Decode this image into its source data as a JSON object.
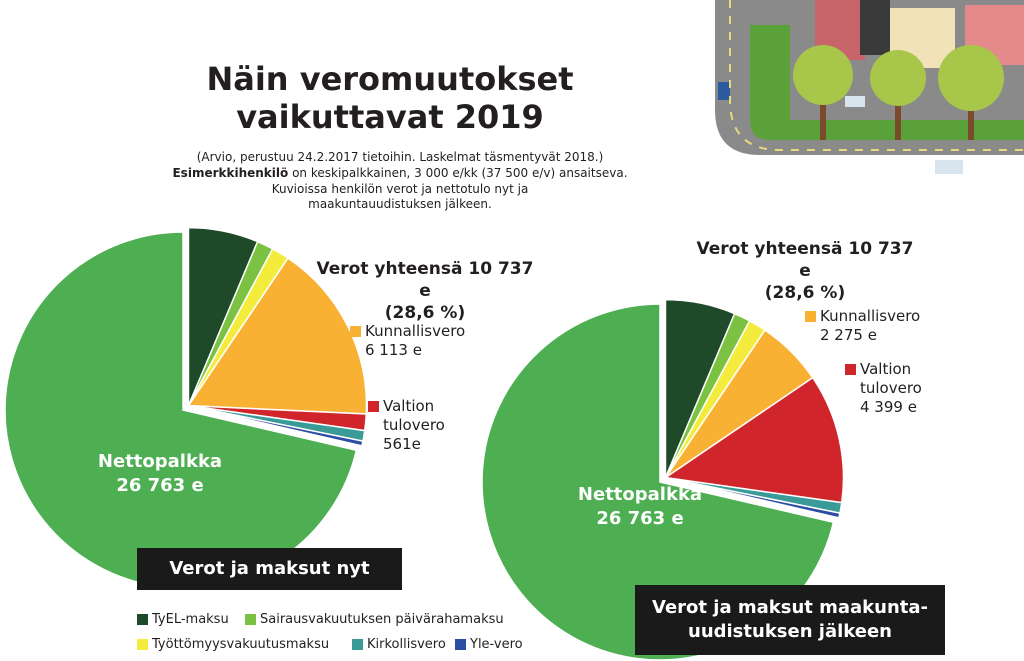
{
  "title": "Näin veromuutokset vaikuttavat 2019",
  "notes": [
    "(Arvio, perustuu 24.2.2017 tietoihin. Laskelmat täsmentyvät 2018.)",
    "Esimerkkihenkilö",
    "on keskipalkkainen, 3 000 e/kk (37 500 e/v) ansaitseva.",
    "Kuvioissa henkilön verot ja nettotulo nyt ja maakuntauudistuksen jälkeen."
  ],
  "chart_data": [
    {
      "type": "pie",
      "title": "Verot ja maksut nyt",
      "annotation": [
        "Verot yhteensä 10 737 e",
        "(28,6 %)"
      ],
      "categories": [
        "TyEL-maksu",
        "Sairausvakuutuksen päivärahamaksu",
        "Työttömyysvakuutusmaksu",
        "Kunnallisvero",
        "Valtion tulovero",
        "Kirkollisvero",
        "Yle-vero",
        "Nettopalkka"
      ],
      "values": [
        2381,
        560,
        600,
        6113,
        561,
        359,
        163,
        26763
      ],
      "value_labels": [
        null,
        null,
        null,
        "6 113 e",
        "561e",
        null,
        null,
        "26 763 e"
      ],
      "colors": [
        "#1e4a2a",
        "#7cc242",
        "#f3ec3c",
        "#f8b133",
        "#d0262b",
        "#3a9a98",
        "#2b4ea3",
        "#4dae52"
      ]
    },
    {
      "type": "pie",
      "title": "Verot ja maksut maakunta-uudistuksen jälkeen",
      "annotation": [
        "Verot yhteensä 10 737 e",
        "(28,6 %)"
      ],
      "categories": [
        "TyEL-maksu",
        "Sairausvakuutuksen päivärahamaksu",
        "Työttömyysvakuutusmaksu",
        "Kunnallisvero",
        "Valtion tulovero",
        "Kirkollisvero",
        "Yle-vero",
        "Nettopalkka"
      ],
      "values": [
        2381,
        560,
        600,
        2275,
        4399,
        359,
        163,
        26763
      ],
      "value_labels": [
        null,
        null,
        null,
        "2 275 e",
        "4 399 e",
        null,
        null,
        "26 763 e"
      ],
      "colors": [
        "#1e4a2a",
        "#7cc242",
        "#f3ec3c",
        "#f8b133",
        "#d0262b",
        "#3a9a98",
        "#2b4ea3",
        "#4dae52"
      ]
    }
  ]
}
